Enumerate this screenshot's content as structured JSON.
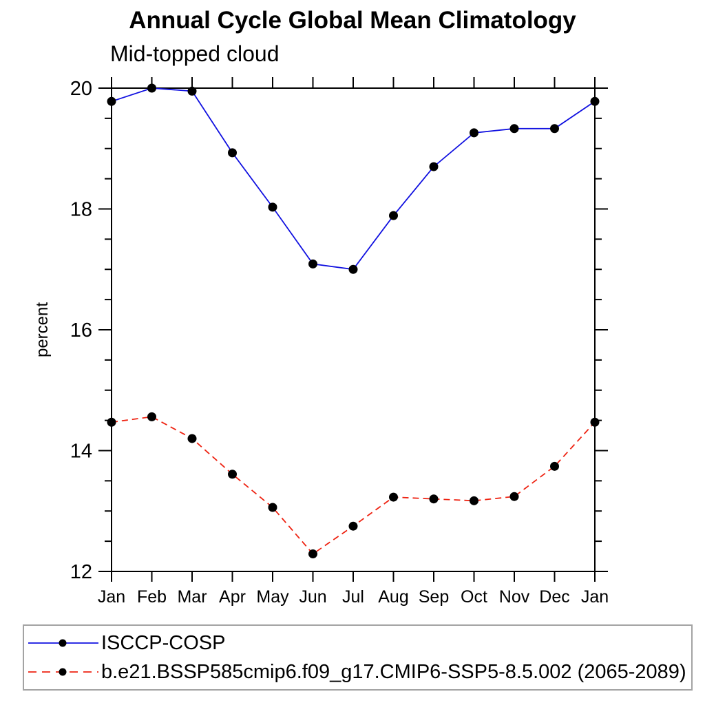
{
  "title": "Annual Cycle Global Mean Climatology",
  "subtitle": "Mid-topped cloud",
  "chart_data": {
    "type": "line",
    "categories": [
      "Jan",
      "Feb",
      "Mar",
      "Apr",
      "May",
      "Jun",
      "Jul",
      "Aug",
      "Sep",
      "Oct",
      "Nov",
      "Dec",
      "Jan"
    ],
    "ylabel": "percent",
    "ylim": [
      12,
      20
    ],
    "yticks_major": [
      12,
      14,
      16,
      18,
      20
    ],
    "ytick_minor_step": 0.5,
    "grid": false,
    "legend_position": "bottom",
    "series": [
      {
        "name": "ISCCP-COSP",
        "color": "#1010e0",
        "line_style": "solid",
        "marker": "circle",
        "marker_color": "#000000",
        "values": [
          19.78,
          20.0,
          19.95,
          18.93,
          18.03,
          17.09,
          17.0,
          17.89,
          18.7,
          19.26,
          19.33,
          19.33,
          19.78
        ]
      },
      {
        "name": "b.e21.BSSP585cmip6.f09_g17.CMIP6-SSP5-8.5.002 (2065-2089)",
        "color": "#ee2211",
        "line_style": "dashed",
        "marker": "circle",
        "marker_color": "#000000",
        "values": [
          14.47,
          14.56,
          14.2,
          13.61,
          13.06,
          12.29,
          12.75,
          13.23,
          13.2,
          13.17,
          13.24,
          13.74,
          14.47
        ]
      }
    ]
  },
  "style": {
    "axis_color": "#000000",
    "legend_border_color": "#a3a3a3"
  }
}
